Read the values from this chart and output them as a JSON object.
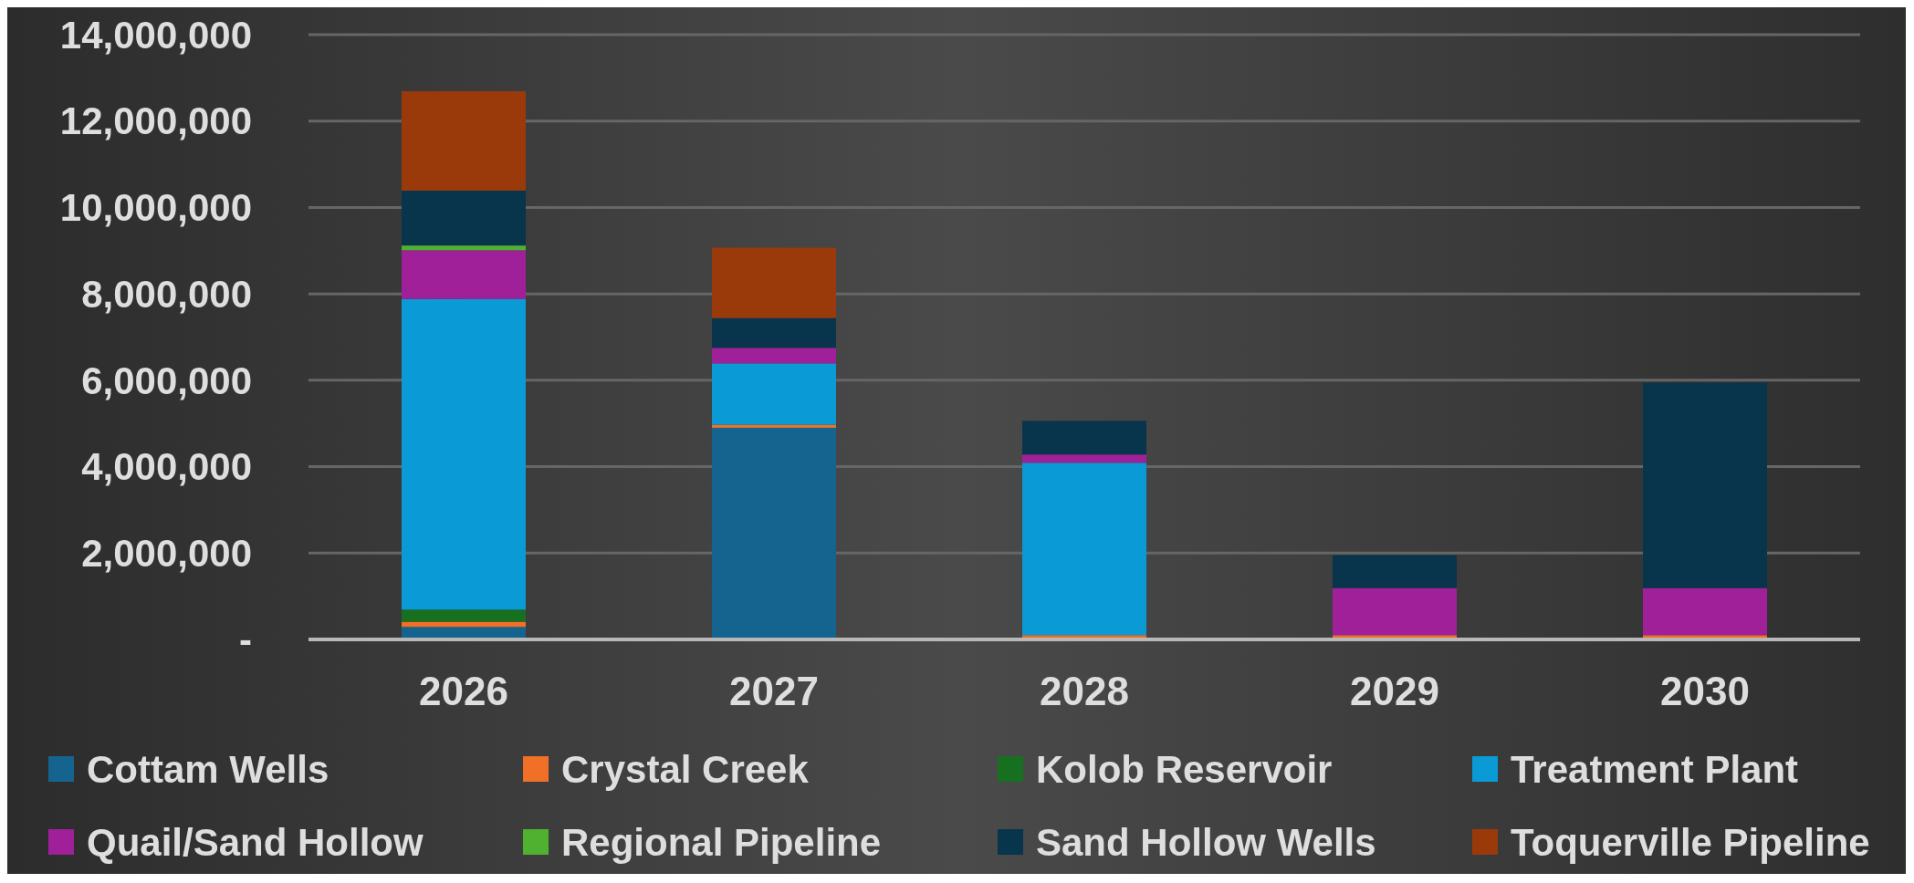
{
  "chart_data": {
    "type": "bar",
    "stacked": true,
    "categories": [
      "2026",
      "2027",
      "2028",
      "2029",
      "2030"
    ],
    "series": [
      {
        "name": "Cottam Wells",
        "color": "#15648f",
        "values": [
          290000,
          4900000,
          0,
          0,
          0
        ]
      },
      {
        "name": "Crystal Creek",
        "color": "#f07028",
        "values": [
          120000,
          70000,
          100000,
          100000,
          100000
        ]
      },
      {
        "name": "Kolob Reservoir",
        "color": "#17701f",
        "values": [
          280000,
          0,
          0,
          0,
          0
        ]
      },
      {
        "name": "Treatment Plant",
        "color": "#0a9ad6",
        "values": [
          7190000,
          1420000,
          3990000,
          0,
          0
        ]
      },
      {
        "name": "Quail/Sand Hollow",
        "color": "#a0209a",
        "values": [
          1130000,
          360000,
          190000,
          1090000,
          1090000
        ]
      },
      {
        "name": "Regional Pipeline",
        "color": "#50b030",
        "values": [
          110000,
          0,
          0,
          0,
          0
        ]
      },
      {
        "name": "Sand Hollow Wells",
        "color": "#08344c",
        "values": [
          1270000,
          690000,
          780000,
          760000,
          4750000
        ]
      },
      {
        "name": "Toquerville Pipeline",
        "color": "#9a3a0a",
        "values": [
          2300000,
          1630000,
          0,
          0,
          0
        ]
      }
    ],
    "ylim": [
      0,
      14000000
    ],
    "yticks": [
      {
        "value": 0,
        "label": "-"
      },
      {
        "value": 2000000,
        "label": "2,000,000"
      },
      {
        "value": 4000000,
        "label": "4,000,000"
      },
      {
        "value": 6000000,
        "label": "6,000,000"
      },
      {
        "value": 8000000,
        "label": "8,000,000"
      },
      {
        "value": 10000000,
        "label": "10,000,000"
      },
      {
        "value": 12000000,
        "label": "12,000,000"
      },
      {
        "value": 14000000,
        "label": "14,000,000"
      }
    ],
    "grid": "y",
    "legend": "bottom"
  }
}
